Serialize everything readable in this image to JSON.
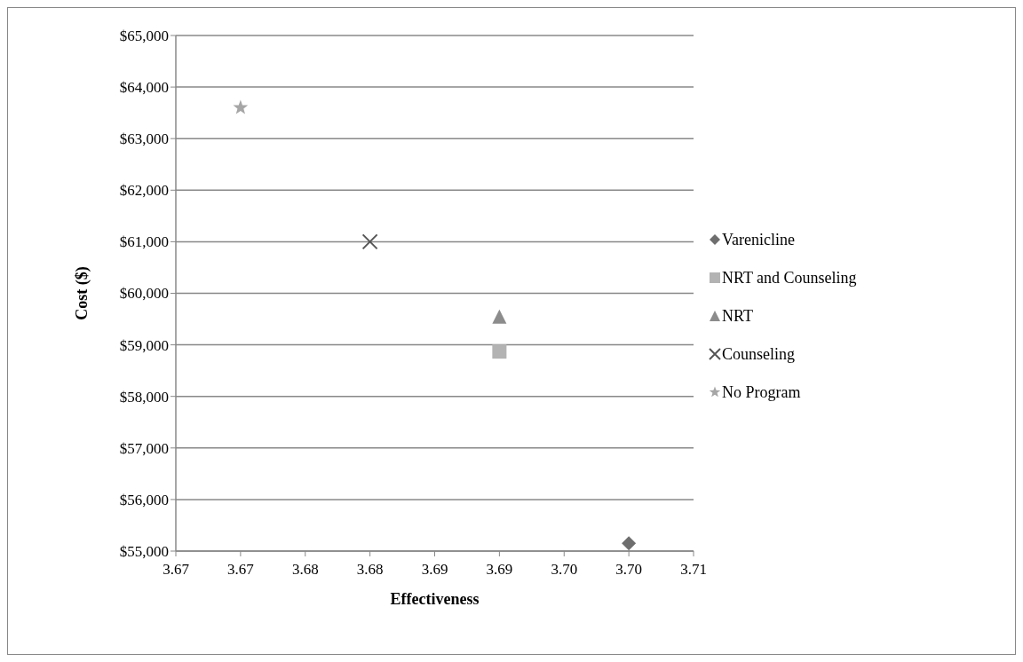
{
  "chart_data": {
    "type": "scatter",
    "xlabel": "Effectiveness",
    "ylabel": "Cost ($)",
    "xlim": [
      3.665,
      3.705
    ],
    "xticks": [
      {
        "value": 3.665,
        "label": "3.67"
      },
      {
        "value": 3.67,
        "label": "3.67"
      },
      {
        "value": 3.675,
        "label": "3.68"
      },
      {
        "value": 3.68,
        "label": "3.68"
      },
      {
        "value": 3.685,
        "label": "3.69"
      },
      {
        "value": 3.69,
        "label": "3.69"
      },
      {
        "value": 3.695,
        "label": "3.70"
      },
      {
        "value": 3.7,
        "label": "3.70"
      },
      {
        "value": 3.705,
        "label": "3.71"
      }
    ],
    "ylim": [
      55000,
      65000
    ],
    "yticks": [
      {
        "value": 55000,
        "label": "$55,000"
      },
      {
        "value": 56000,
        "label": "$56,000"
      },
      {
        "value": 57000,
        "label": "$57,000"
      },
      {
        "value": 58000,
        "label": "$58,000"
      },
      {
        "value": 59000,
        "label": "$59,000"
      },
      {
        "value": 60000,
        "label": "$60,000"
      },
      {
        "value": 61000,
        "label": "$61,000"
      },
      {
        "value": 62000,
        "label": "$62,000"
      },
      {
        "value": 63000,
        "label": "$63,000"
      },
      {
        "value": 64000,
        "label": "$64,000"
      },
      {
        "value": 65000,
        "label": "$65,000"
      }
    ],
    "grid": "y",
    "legend": "right",
    "series": [
      {
        "name": "Varenicline",
        "color": "#6e6e6e",
        "marker": "diamond",
        "x": [
          3.7
        ],
        "values": [
          55150
        ]
      },
      {
        "name": "NRT and Counseling",
        "color": "#b3b3b3",
        "marker": "square",
        "x": [
          3.69
        ],
        "values": [
          58870
        ]
      },
      {
        "name": "NRT",
        "color": "#8c8c8c",
        "marker": "triangle",
        "x": [
          3.69
        ],
        "values": [
          59550
        ]
      },
      {
        "name": "Counseling",
        "color": "#555555",
        "marker": "cross",
        "x": [
          3.68
        ],
        "values": [
          61000
        ]
      },
      {
        "name": "No Program",
        "color": "#a6a6a6",
        "marker": "star",
        "x": [
          3.67
        ],
        "values": [
          63600
        ]
      }
    ]
  }
}
